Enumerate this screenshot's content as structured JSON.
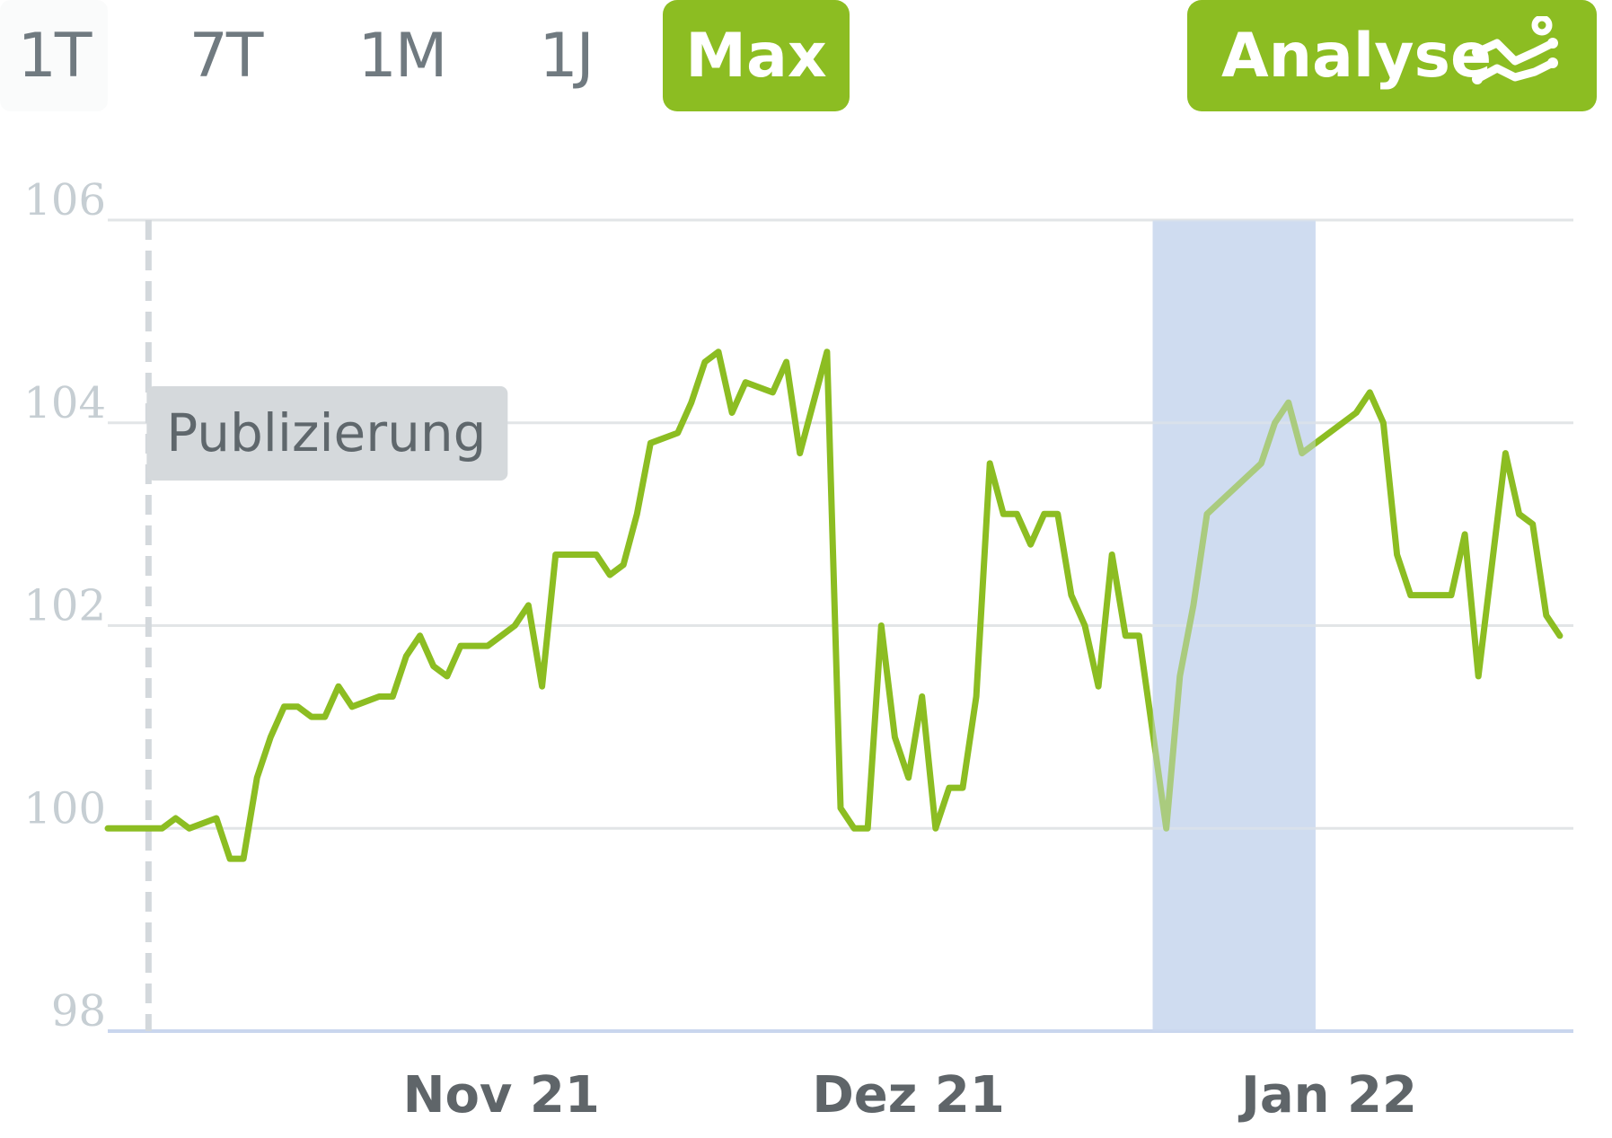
{
  "toolbar": {
    "ranges": [
      "1T",
      "7T",
      "1M",
      "1J",
      "Max"
    ],
    "active_range": "Max",
    "analyse_label": "Analyse",
    "analyse_icon": "line-chart-icon"
  },
  "colors": {
    "accent": "#8cbd22",
    "line": "#8cbd22",
    "grid": "#e2e5e7",
    "highlight_band": "#cfdcf0",
    "marker_label_bg": "#d5d9dc",
    "tick_text": "#c6ced3",
    "x_tick_text": "#5f6569"
  },
  "chart_data": {
    "type": "line",
    "title": "",
    "xlabel": "",
    "ylabel": "",
    "ylim": [
      98,
      106
    ],
    "xlim": [
      "2021-10-03",
      "2022-01-19"
    ],
    "y_ticks": [
      "98",
      "100",
      "102",
      "104",
      "106"
    ],
    "x_ticks": [
      {
        "date": "2021-11-01",
        "label": "Nov 21"
      },
      {
        "date": "2021-12-01",
        "label": "Dez 21"
      },
      {
        "date": "2022-01-01",
        "label": "Jan 22"
      }
    ],
    "grid": true,
    "publication_marker": {
      "date": "2021-10-06",
      "label": "Publizierung"
    },
    "highlight_band": {
      "from": "2021-12-19",
      "to": "2021-12-31"
    },
    "series": [
      {
        "points": [
          [
            "2021-10-03",
            100.0
          ],
          [
            "2021-10-05",
            100.0
          ],
          [
            "2021-10-07",
            100.0
          ],
          [
            "2021-10-08",
            100.1
          ],
          [
            "2021-10-09",
            100.0
          ],
          [
            "2021-10-11",
            100.1
          ],
          [
            "2021-10-12",
            99.7
          ],
          [
            "2021-10-13",
            99.7
          ],
          [
            "2021-10-14",
            100.5
          ],
          [
            "2021-10-15",
            100.9
          ],
          [
            "2021-10-16",
            101.2
          ],
          [
            "2021-10-17",
            101.2
          ],
          [
            "2021-10-18",
            101.1
          ],
          [
            "2021-10-19",
            101.1
          ],
          [
            "2021-10-20",
            101.4
          ],
          [
            "2021-10-21",
            101.2
          ],
          [
            "2021-10-23",
            101.3
          ],
          [
            "2021-10-24",
            101.3
          ],
          [
            "2021-10-25",
            101.7
          ],
          [
            "2021-10-26",
            101.9
          ],
          [
            "2021-10-27",
            101.6
          ],
          [
            "2021-10-28",
            101.5
          ],
          [
            "2021-10-29",
            101.8
          ],
          [
            "2021-10-30",
            101.8
          ],
          [
            "2021-10-31",
            101.8
          ],
          [
            "2021-11-01",
            101.9
          ],
          [
            "2021-11-02",
            102.0
          ],
          [
            "2021-11-03",
            102.2
          ],
          [
            "2021-11-04",
            101.4
          ],
          [
            "2021-11-05",
            102.7
          ],
          [
            "2021-11-07",
            102.7
          ],
          [
            "2021-11-08",
            102.7
          ],
          [
            "2021-11-09",
            102.5
          ],
          [
            "2021-11-10",
            102.6
          ],
          [
            "2021-11-11",
            103.1
          ],
          [
            "2021-11-12",
            103.8
          ],
          [
            "2021-11-14",
            103.9
          ],
          [
            "2021-11-15",
            104.2
          ],
          [
            "2021-11-16",
            104.6
          ],
          [
            "2021-11-17",
            104.7
          ],
          [
            "2021-11-18",
            104.1
          ],
          [
            "2021-11-19",
            104.4
          ],
          [
            "2021-11-21",
            104.3
          ],
          [
            "2021-11-22",
            104.6
          ],
          [
            "2021-11-23",
            103.7
          ],
          [
            "2021-11-25",
            104.7
          ],
          [
            "2021-11-26",
            100.2
          ],
          [
            "2021-11-27",
            100.0
          ],
          [
            "2021-11-28",
            100.0
          ],
          [
            "2021-11-29",
            102.0
          ],
          [
            "2021-11-30",
            100.9
          ],
          [
            "2021-12-01",
            100.5
          ],
          [
            "2021-12-02",
            101.3
          ],
          [
            "2021-12-03",
            100.0
          ],
          [
            "2021-12-04",
            100.4
          ],
          [
            "2021-12-05",
            100.4
          ],
          [
            "2021-12-06",
            101.3
          ],
          [
            "2021-12-07",
            103.6
          ],
          [
            "2021-12-08",
            103.1
          ],
          [
            "2021-12-09",
            103.1
          ],
          [
            "2021-12-10",
            102.8
          ],
          [
            "2021-12-11",
            103.1
          ],
          [
            "2021-12-12",
            103.1
          ],
          [
            "2021-12-13",
            102.3
          ],
          [
            "2021-12-14",
            102.0
          ],
          [
            "2021-12-15",
            101.4
          ],
          [
            "2021-12-16",
            102.7
          ],
          [
            "2021-12-17",
            101.9
          ],
          [
            "2021-12-18",
            101.9
          ],
          [
            "2021-12-20",
            100.0
          ],
          [
            "2021-12-21",
            101.5
          ],
          [
            "2021-12-22",
            102.2
          ],
          [
            "2021-12-23",
            103.1
          ],
          [
            "2021-12-27",
            103.6
          ],
          [
            "2021-12-28",
            104.0
          ],
          [
            "2021-12-29",
            104.2
          ],
          [
            "2021-12-30",
            103.7
          ],
          [
            "2022-01-03",
            104.1
          ],
          [
            "2022-01-04",
            104.3
          ],
          [
            "2022-01-05",
            104.0
          ],
          [
            "2022-01-06",
            102.7
          ],
          [
            "2022-01-07",
            102.3
          ],
          [
            "2022-01-08",
            102.3
          ],
          [
            "2022-01-09",
            102.3
          ],
          [
            "2022-01-10",
            102.3
          ],
          [
            "2022-01-11",
            102.9
          ],
          [
            "2022-01-12",
            101.5
          ],
          [
            "2022-01-13",
            102.6
          ],
          [
            "2022-01-14",
            103.7
          ],
          [
            "2022-01-15",
            103.1
          ],
          [
            "2022-01-16",
            103.0
          ],
          [
            "2022-01-17",
            102.1
          ],
          [
            "2022-01-18",
            101.9
          ]
        ]
      }
    ]
  }
}
